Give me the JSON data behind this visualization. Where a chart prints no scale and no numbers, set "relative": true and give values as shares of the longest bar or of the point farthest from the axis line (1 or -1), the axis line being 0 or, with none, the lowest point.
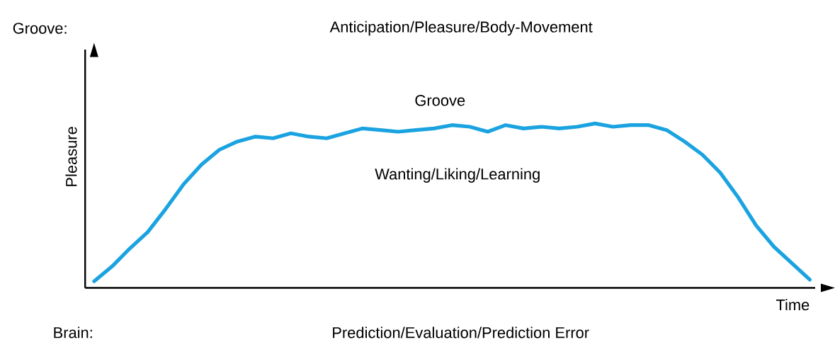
{
  "chart_data": {
    "type": "line",
    "title": "Anticipation/Pleasure/Body-Movement",
    "xlabel": "Time",
    "ylabel": "Pleasure",
    "relative": true,
    "annotations": [
      "Groove:",
      "Groove",
      "Wanting/Liking/Learning",
      "Brain:",
      "Prediction/Evaluation/Prediction Error"
    ],
    "categories": [
      null,
      null,
      null,
      null,
      null,
      null,
      null,
      null,
      null,
      null,
      null,
      null,
      null,
      null,
      null,
      null,
      null,
      null,
      null,
      null,
      null,
      null,
      null,
      null,
      null,
      null,
      null,
      null,
      null,
      null,
      null,
      null,
      null,
      null,
      null,
      null,
      null,
      null,
      null,
      null,
      null
    ],
    "series": [
      {
        "color": "#1aa3e0",
        "values": [
          0.04,
          0.13,
          0.24,
          0.34,
          0.48,
          0.63,
          0.75,
          0.84,
          0.89,
          0.92,
          0.91,
          0.94,
          0.92,
          0.91,
          0.94,
          0.97,
          0.96,
          0.95,
          0.96,
          0.97,
          0.99,
          0.98,
          0.95,
          0.99,
          0.97,
          0.98,
          0.97,
          0.98,
          1,
          0.98,
          0.99,
          0.99,
          0.96,
          0.89,
          0.81,
          0.7,
          0.55,
          0.38,
          0.25,
          0.15,
          0.05
        ]
      }
    ],
    "marker": "none",
    "line_style": "solid"
  }
}
